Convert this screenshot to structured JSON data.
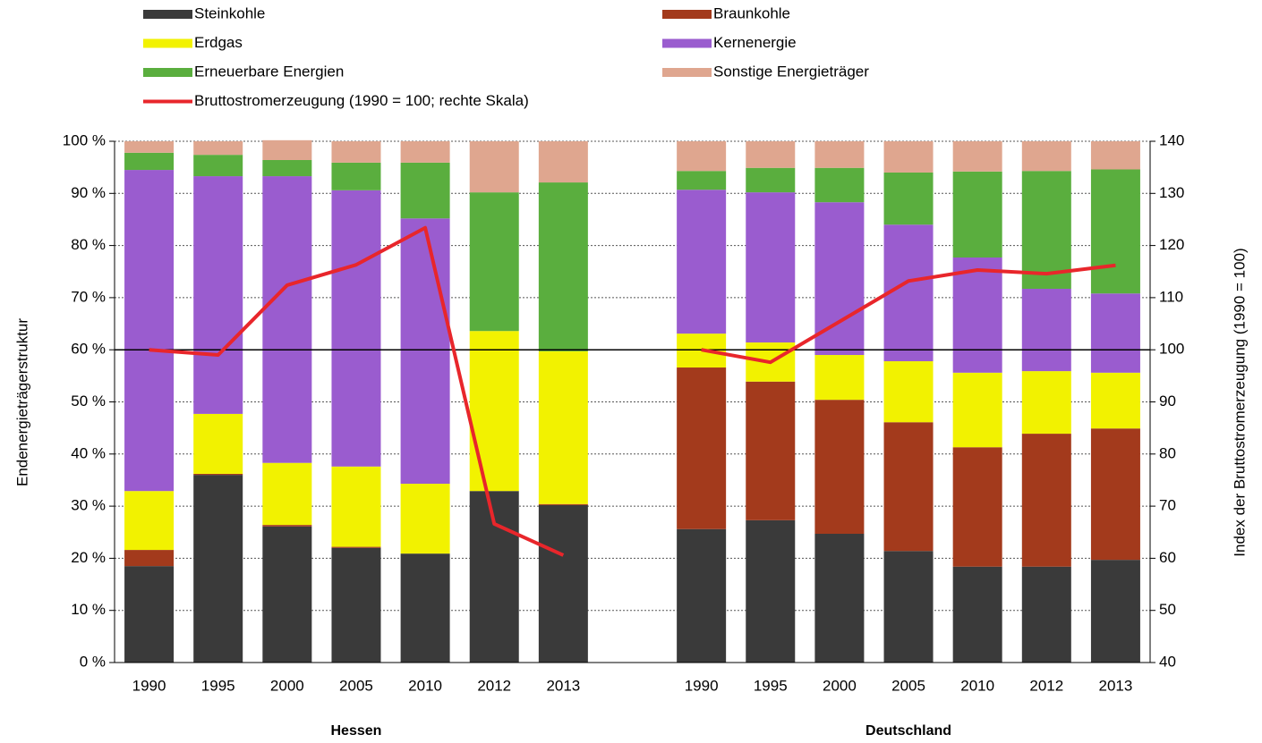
{
  "chart_data": {
    "type": "stacked-bar-line",
    "legend_position": "top",
    "grid": true,
    "categories": [
      "1990",
      "1995",
      "2000",
      "2005",
      "2010",
      "2012",
      "2013",
      null,
      "1990",
      "1995",
      "2000",
      "2005",
      "2010",
      "2012",
      "2013"
    ],
    "groups": [
      {
        "label": "Hessen"
      },
      {
        "label": "Deutschland"
      }
    ],
    "y_label": "Endenergieträgerstruktur",
    "y2_label": "Index der Bruttostromerzeugung (1990 = 100)",
    "ylim": [
      0,
      100
    ],
    "yticks": [
      {
        "value": 0,
        "label": "0 %"
      },
      {
        "value": 10,
        "label": "10 %"
      },
      {
        "value": 20,
        "label": "20 %"
      },
      {
        "value": 30,
        "label": "30 %"
      },
      {
        "value": 40,
        "label": "40 %"
      },
      {
        "value": 50,
        "label": "50 %"
      },
      {
        "value": 60,
        "label": "60 %"
      },
      {
        "value": 70,
        "label": "70 %"
      },
      {
        "value": 80,
        "label": "80 %"
      },
      {
        "value": 90,
        "label": "90 %"
      },
      {
        "value": 100,
        "label": "100 %"
      }
    ],
    "y2lim": [
      40,
      140
    ],
    "y2ticks": [
      40,
      50,
      60,
      70,
      80,
      90,
      100,
      110,
      120,
      130,
      140
    ],
    "reference_line": {
      "axis": "y2",
      "value": 100,
      "color": "#000000"
    },
    "series": [
      {
        "name": "Steinkohle",
        "kind": "bar",
        "color": "#3a3a3a",
        "values": [
          18.5,
          36.0,
          26.1,
          22.0,
          20.9,
          32.9,
          30.2,
          null,
          25.6,
          27.3,
          24.7,
          21.4,
          18.4,
          18.4,
          19.7
        ]
      },
      {
        "name": "Braunkohle",
        "kind": "bar",
        "color": "#a33a1c",
        "values": [
          3.1,
          0.2,
          0.3,
          0.2,
          0,
          0,
          0.2,
          null,
          31.0,
          26.6,
          25.7,
          24.7,
          22.9,
          25.5,
          25.2
        ]
      },
      {
        "name": "Erdgas",
        "kind": "bar",
        "color": "#f2f200",
        "values": [
          11.3,
          11.5,
          11.9,
          15.4,
          13.4,
          30.7,
          29.3,
          null,
          6.5,
          7.5,
          8.6,
          11.7,
          14.3,
          12.0,
          10.7
        ]
      },
      {
        "name": "Kernenergie",
        "kind": "bar",
        "color": "#9a5ccf",
        "values": [
          61.6,
          45.6,
          55.0,
          53.0,
          50.9,
          0,
          0,
          null,
          27.6,
          28.8,
          29.3,
          26.2,
          22.1,
          15.8,
          15.2
        ]
      },
      {
        "name": "Erneuerbare Energien",
        "kind": "bar",
        "color": "#5aae3e",
        "values": [
          3.3,
          4.1,
          3.1,
          5.3,
          10.7,
          26.6,
          32.4,
          null,
          3.6,
          4.7,
          6.6,
          10.0,
          16.5,
          22.6,
          23.8
        ]
      },
      {
        "name": "Sonstige Energieträger",
        "kind": "bar",
        "color": "#dfa68f",
        "values": [
          2.2,
          2.6,
          3.8,
          4.1,
          4.1,
          9.8,
          7.9,
          null,
          5.7,
          5.1,
          5.1,
          6.0,
          5.8,
          5.7,
          5.4
        ]
      },
      {
        "name": "Bruttostromerzeugung (1990 = 100; rechte Skala)",
        "kind": "line",
        "axis": "y2",
        "color": "#e8262b",
        "values": [
          100,
          99.0,
          112.4,
          116.3,
          123.4,
          66.6,
          60.6,
          null,
          100,
          97.6,
          105.4,
          113.2,
          115.3,
          114.6,
          116.2
        ]
      }
    ]
  }
}
